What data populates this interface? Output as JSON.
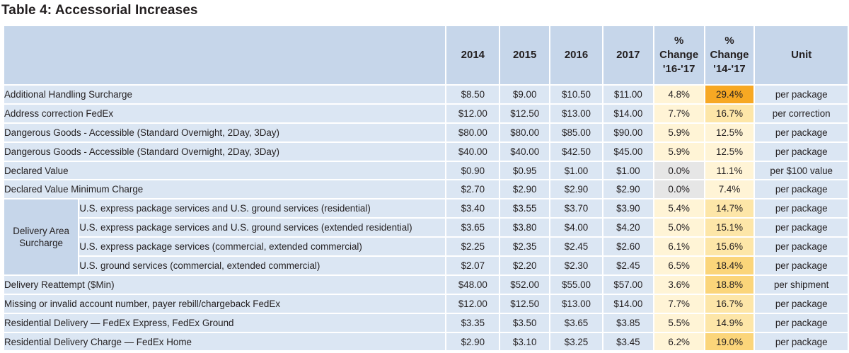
{
  "title": "Table 4: Accessorial Increases",
  "columns": [
    "2014",
    "2015",
    "2016",
    "2017",
    "% Change '16-'17",
    "% Change '14-'17",
    "Unit"
  ],
  "header": {
    "c2014": "2014",
    "c2015": "2015",
    "c2016": "2016",
    "c2017": "2017",
    "pct1617": [
      "%",
      "Change",
      "'16-'17"
    ],
    "pct1417": [
      "%",
      "Change",
      "'14-'17"
    ],
    "unit": "Unit"
  },
  "rows": [
    {
      "label": "Additional Handling Surcharge",
      "v2014": "$8.50",
      "v2015": "$9.00",
      "v2016": "$10.50",
      "v2017": "$11.00",
      "p1617": "4.8%",
      "p1417": "29.4%",
      "unit": "per package"
    },
    {
      "label": "Address correction FedEx",
      "v2014": "$12.00",
      "v2015": "$12.50",
      "v2016": "$13.00",
      "v2017": "$14.00",
      "p1617": "7.7%",
      "p1417": "16.7%",
      "unit": "per correction"
    },
    {
      "label": "Dangerous Goods - Accessible (Standard Overnight, 2Day, 3Day)",
      "v2014": "$80.00",
      "v2015": "$80.00",
      "v2016": "$85.00",
      "v2017": "$90.00",
      "p1617": "5.9%",
      "p1417": "12.5%",
      "unit": "per package"
    },
    {
      "label": "Dangerous Goods - Accessible (Standard Overnight, 2Day, 3Day)",
      "v2014": "$40.00",
      "v2015": "$40.00",
      "v2016": "$42.50",
      "v2017": "$45.00",
      "p1617": "5.9%",
      "p1417": "12.5%",
      "unit": "per package"
    },
    {
      "label": "Declared Value",
      "v2014": "$0.90",
      "v2015": "$0.95",
      "v2016": "$1.00",
      "v2017": "$1.00",
      "p1617": "0.0%",
      "p1417": "11.1%",
      "unit": "per $100 value"
    },
    {
      "label": "Declared Value Minimum Charge",
      "v2014": "$2.70",
      "v2015": "$2.90",
      "v2016": "$2.90",
      "v2017": "$2.90",
      "p1617": "0.0%",
      "p1417": "7.4%",
      "unit": "per package"
    },
    {
      "group": [
        "Delivery Area",
        "Surcharge"
      ],
      "label": "U.S. express package services and U.S. ground services (residential)",
      "v2014": "$3.40",
      "v2015": "$3.55",
      "v2016": "$3.70",
      "v2017": "$3.90",
      "p1617": "5.4%",
      "p1417": "14.7%",
      "unit": "per package"
    },
    {
      "label": "U.S. express package services and U.S. ground services (extended residential)",
      "v2014": "$3.65",
      "v2015": "$3.80",
      "v2016": "$4.00",
      "v2017": "$4.20",
      "p1617": "5.0%",
      "p1417": "15.1%",
      "unit": "per package"
    },
    {
      "label": "U.S. express package services (commercial, extended commercial)",
      "v2014": "$2.25",
      "v2015": "$2.35",
      "v2016": "$2.45",
      "v2017": "$2.60",
      "p1617": "6.1%",
      "p1417": "15.6%",
      "unit": "per package"
    },
    {
      "label": "U.S. ground services (commercial, extended commercial)",
      "v2014": "$2.07",
      "v2015": "$2.20",
      "v2016": "$2.30",
      "v2017": "$2.45",
      "p1617": "6.5%",
      "p1417": "18.4%",
      "unit": "per package"
    },
    {
      "label": "Delivery Reattempt ($Min)",
      "v2014": "$48.00",
      "v2015": "$52.00",
      "v2016": "$55.00",
      "v2017": "$57.00",
      "p1617": "3.6%",
      "p1417": "18.8%",
      "unit": "per shipment"
    },
    {
      "label": "Missing or invalid account number, payer rebill/chargeback FedEx",
      "v2014": "$12.00",
      "v2015": "$12.50",
      "v2016": "$13.00",
      "v2017": "$14.00",
      "p1617": "7.7%",
      "p1417": "16.7%",
      "unit": "per package"
    },
    {
      "label": "Residential Delivery — FedEx Express, FedEx Ground",
      "v2014": "$3.35",
      "v2015": "$3.50",
      "v2016": "$3.65",
      "v2017": "$3.85",
      "p1617": "5.5%",
      "p1417": "14.9%",
      "unit": "per package"
    },
    {
      "label": "Residential Delivery Charge — FedEx Home",
      "v2014": "$2.90",
      "v2015": "$3.10",
      "v2016": "$3.25",
      "v2017": "$3.45",
      "p1617": "6.2%",
      "p1417": "19.0%",
      "unit": "per package"
    }
  ],
  "colors": {
    "header_bg": "#c6d6ea",
    "cell_bg": "#dbe6f3",
    "pct_zero": "#e6e6e6",
    "pct_light": "#fff4d6",
    "pct_mid": "#fde6a8",
    "pct_dark": "#fbd57a",
    "pct_max": "#f7a823"
  }
}
